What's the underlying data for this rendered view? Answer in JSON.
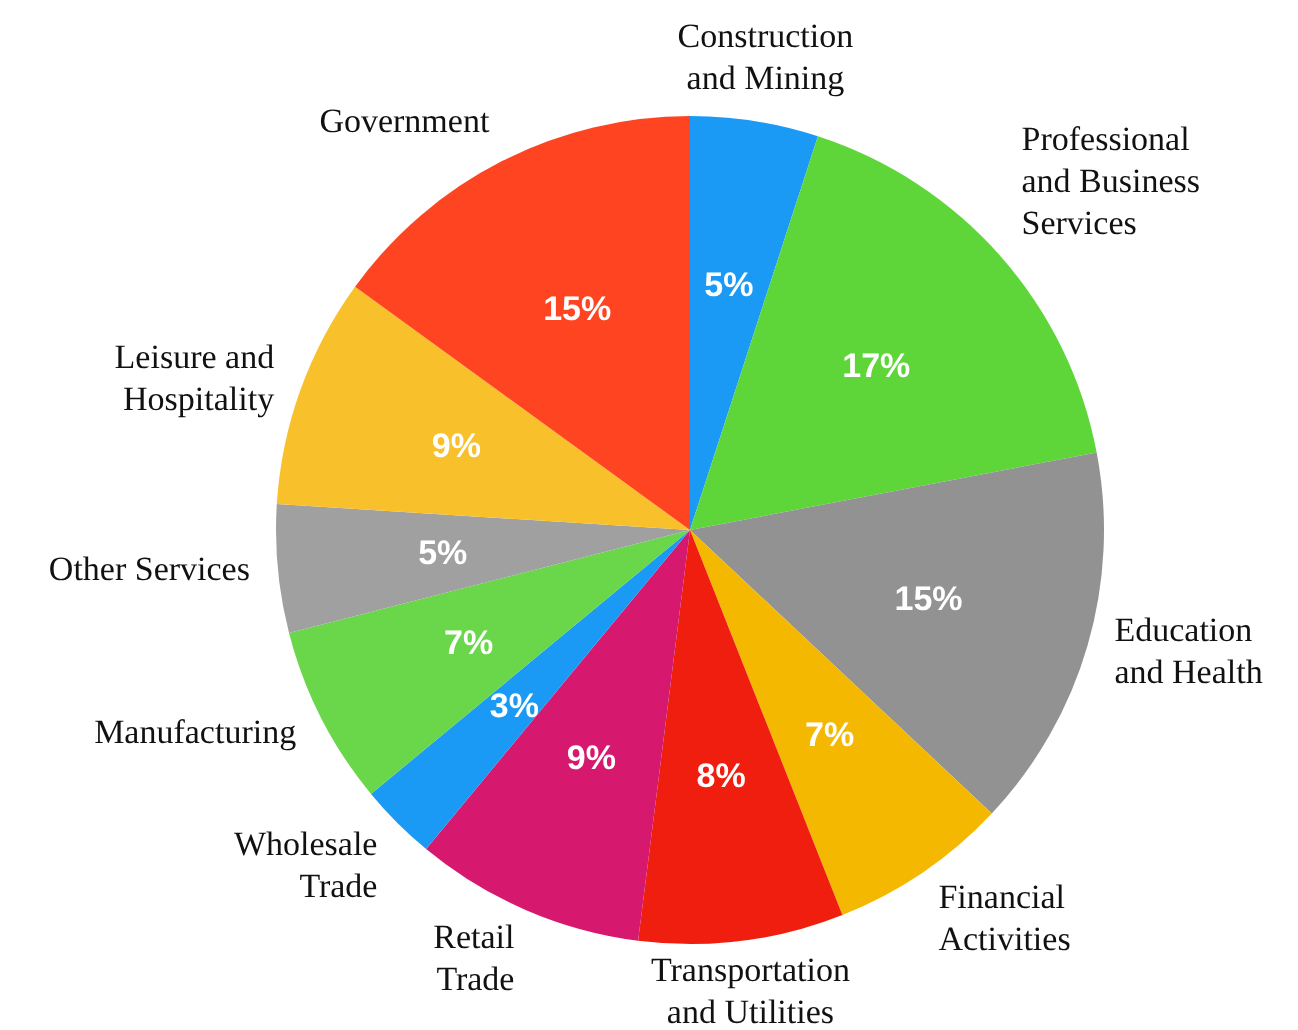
{
  "chart_data": {
    "type": "pie",
    "categories": [
      "Construction and Mining",
      "Professional and Business Services",
      "Education and Health",
      "Financial Activities",
      "Transportation and Utilities",
      "Retail Trade",
      "Wholesale Trade",
      "Manufacturing",
      "Other Services",
      "Leisure and Hospitality",
      "Government"
    ],
    "values": [
      5,
      17,
      15,
      7,
      8,
      9,
      3,
      7,
      5,
      9,
      15
    ],
    "value_labels": [
      "5%",
      "17%",
      "15%",
      "7%",
      "8%",
      "9%",
      "3%",
      "7%",
      "5%",
      "9%",
      "15%"
    ],
    "colors": [
      "#1a9af5",
      "#5ed63a",
      "#929292",
      "#f5b800",
      "#f01e0e",
      "#d6196e",
      "#1a9af5",
      "#6ad64a",
      "#a0a0a0",
      "#f8c02a",
      "#ff4422"
    ]
  }
}
